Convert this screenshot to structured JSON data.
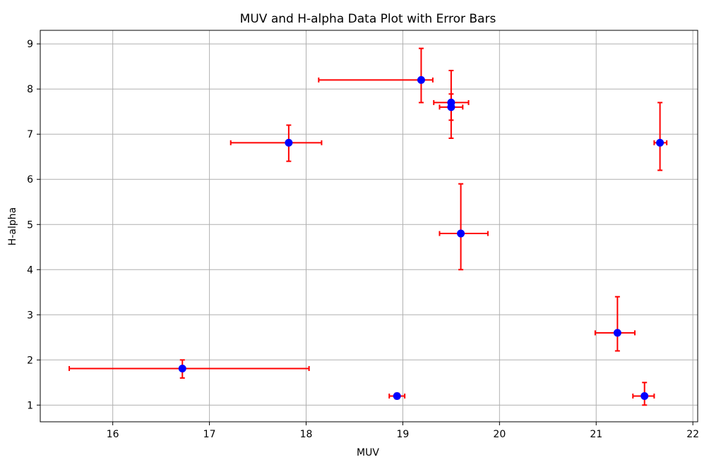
{
  "chart_data": {
    "type": "scatter",
    "title": "MUV and H-alpha Data Plot with Error Bars",
    "xlabel": "MUV",
    "ylabel": "H-alpha",
    "xlim": [
      15.25,
      22.05
    ],
    "ylim": [
      0.63,
      9.3
    ],
    "xticks": [
      16,
      17,
      18,
      19,
      20,
      21,
      22
    ],
    "yticks": [
      1,
      2,
      3,
      4,
      5,
      6,
      7,
      8,
      9
    ],
    "grid": true,
    "marker_color": "#0000ff",
    "errorbar_color": "#ff0000",
    "points": [
      {
        "x": 16.72,
        "y": 1.81,
        "xerr": [
          1.17,
          1.31
        ],
        "yerr": [
          0.21,
          0.19
        ]
      },
      {
        "x": 17.82,
        "y": 6.81,
        "xerr": [
          0.6,
          0.34
        ],
        "yerr": [
          0.41,
          0.39
        ]
      },
      {
        "x": 18.94,
        "y": 1.2,
        "xerr": [
          0.08,
          0.08
        ],
        "yerr": [
          0.06,
          0.06
        ]
      },
      {
        "x": 19.19,
        "y": 8.2,
        "xerr": [
          1.06,
          0.12
        ],
        "yerr": [
          0.5,
          0.7
        ]
      },
      {
        "x": 19.5,
        "y": 7.7,
        "xerr": [
          0.18,
          0.18
        ],
        "yerr": [
          0.79,
          0.71
        ]
      },
      {
        "x": 19.5,
        "y": 7.6,
        "xerr": [
          0.12,
          0.12
        ],
        "yerr": [
          0.29,
          0.29
        ]
      },
      {
        "x": 19.6,
        "y": 4.8,
        "xerr": [
          0.22,
          0.28
        ],
        "yerr": [
          0.8,
          1.1
        ]
      },
      {
        "x": 21.22,
        "y": 2.6,
        "xerr": [
          0.23,
          0.18
        ],
        "yerr": [
          0.4,
          0.8
        ]
      },
      {
        "x": 21.5,
        "y": 1.2,
        "xerr": [
          0.12,
          0.1
        ],
        "yerr": [
          0.2,
          0.3
        ]
      },
      {
        "x": 21.66,
        "y": 6.81,
        "xerr": [
          0.06,
          0.07
        ],
        "yerr": [
          0.61,
          0.89
        ]
      }
    ]
  }
}
